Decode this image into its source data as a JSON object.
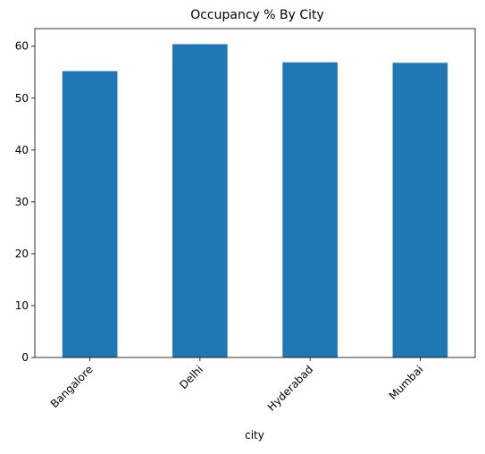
{
  "chart_data": {
    "type": "bar",
    "title": "Occupancy % By City",
    "xlabel": "city",
    "ylabel": "",
    "categories": [
      "Bangalore",
      "Delhi",
      "Hyderabad",
      "Mumbai"
    ],
    "values": [
      55.2,
      60.4,
      56.9,
      56.8
    ],
    "ylim": [
      0,
      63.4
    ],
    "yticks": [
      0,
      10,
      20,
      30,
      40,
      50,
      60
    ],
    "grid": false,
    "legend": "none",
    "bar_color": "#1f77b4"
  }
}
